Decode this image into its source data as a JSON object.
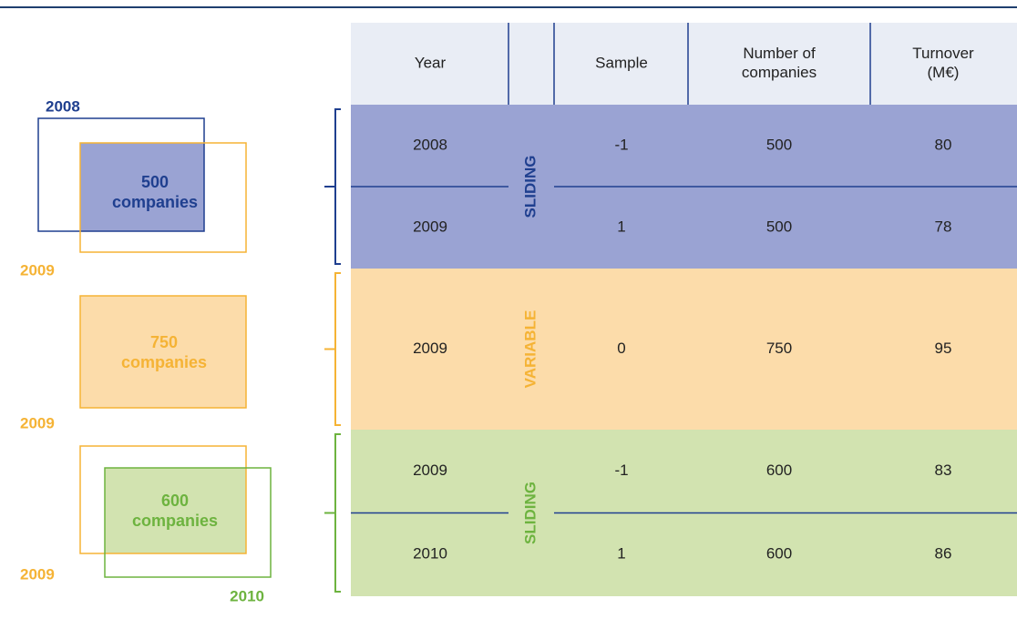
{
  "header": {
    "columns": [
      [
        "Year"
      ],
      [
        "Sample"
      ],
      [
        "Number of",
        "companies"
      ],
      [
        "Turnover",
        "(M€)"
      ]
    ]
  },
  "groups": [
    {
      "label": "SLIDING",
      "color": "#1f3f8f",
      "fill": "#9aa3d3",
      "rows": [
        [
          2008,
          -1,
          500,
          80
        ],
        [
          2009,
          1,
          500,
          78
        ]
      ]
    },
    {
      "label": "VARIABLE",
      "color": "#f5b335",
      "fill": "#fcdcaa",
      "rows": [
        [
          2009,
          0,
          750,
          95
        ]
      ]
    },
    {
      "label": "SLIDING",
      "color": "#6db33f",
      "fill": "#d2e3b0",
      "rows": [
        [
          2009,
          -1,
          600,
          83
        ],
        [
          2010,
          1,
          600,
          86
        ]
      ]
    }
  ],
  "diagrams": [
    {
      "labels": [
        "2008",
        "2009"
      ],
      "count": [
        "500",
        "companies"
      ]
    },
    {
      "labels": [
        "2009"
      ],
      "count": [
        "750",
        "companies"
      ]
    },
    {
      "labels": [
        "2009",
        "2010"
      ],
      "count": [
        "600",
        "companies"
      ]
    }
  ]
}
